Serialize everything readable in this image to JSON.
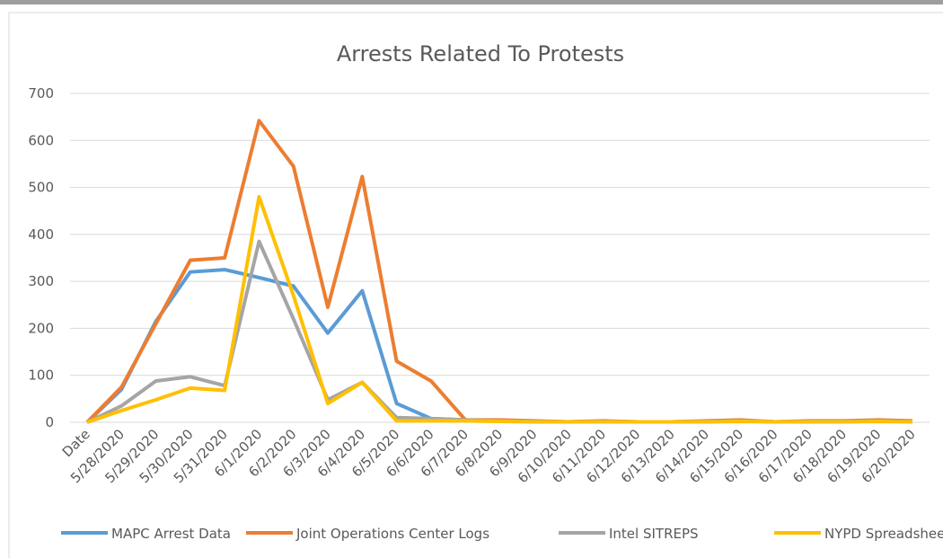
{
  "chart_data": {
    "type": "line",
    "title": "Arrests Related To Protests",
    "categories": [
      "Date",
      "5/28/2020",
      "5/29/2020",
      "5/30/2020",
      "5/31/2020",
      "6/1/2020",
      "6/2/2020",
      "6/3/2020",
      "6/4/2020",
      "6/5/2020",
      "6/6/2020",
      "6/7/2020",
      "6/8/2020",
      "6/9/2020",
      "6/10/2020",
      "6/11/2020",
      "6/12/2020",
      "6/13/2020",
      "6/14/2020",
      "6/15/2020",
      "6/16/2020",
      "6/17/2020",
      "6/18/2020",
      "6/19/2020",
      "6/20/2020"
    ],
    "series": [
      {
        "name": "MAPC Arrest Data",
        "color": "#5b9bd5",
        "values": [
          0,
          70,
          215,
          320,
          325,
          308,
          290,
          190,
          280,
          40,
          8,
          5,
          3,
          2,
          1,
          2,
          1,
          1,
          2,
          3,
          1,
          2,
          2,
          3,
          2
        ]
      },
      {
        "name": "Joint Operations Center Logs",
        "color": "#ed7d31",
        "values": [
          0,
          75,
          210,
          345,
          350,
          642,
          545,
          245,
          523,
          130,
          88,
          5,
          5,
          3,
          1,
          3,
          1,
          1,
          3,
          5,
          1,
          3,
          3,
          5,
          3
        ]
      },
      {
        "name": "Intel SITREPS",
        "color": "#a5a5a5",
        "values": [
          0,
          35,
          88,
          97,
          78,
          385,
          220,
          48,
          85,
          10,
          8,
          5,
          3,
          2,
          1,
          2,
          1,
          1,
          2,
          3,
          1,
          2,
          2,
          3,
          2
        ]
      },
      {
        "name": "NYPD Spreadsheet",
        "color": "#ffc000",
        "values": [
          0,
          25,
          48,
          73,
          68,
          480,
          270,
          40,
          85,
          3,
          3,
          3,
          2,
          1,
          1,
          1,
          1,
          1,
          1,
          2,
          1,
          1,
          1,
          2,
          1
        ]
      }
    ],
    "ylim": [
      0,
      700
    ],
    "yticks": [
      0,
      100,
      200,
      300,
      400,
      500,
      600,
      700
    ],
    "grid": true,
    "legend": "bottom"
  }
}
